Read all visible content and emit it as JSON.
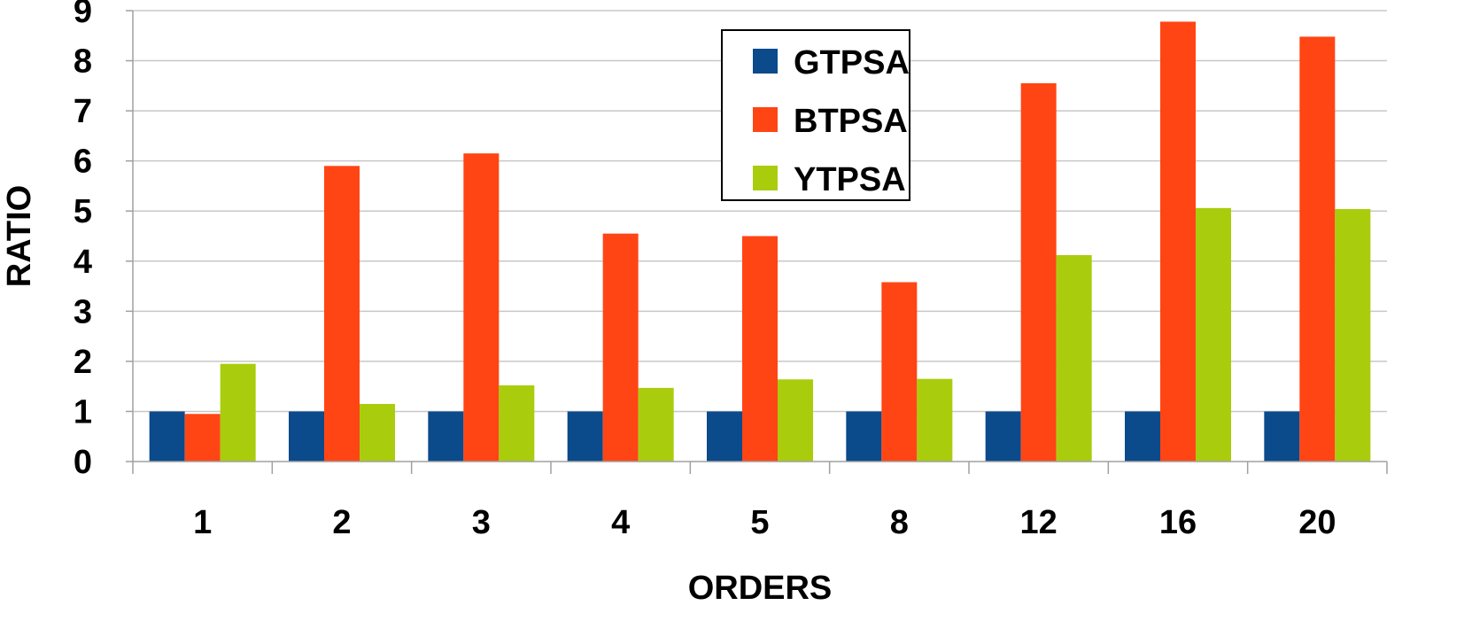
{
  "chart_data": {
    "type": "bar",
    "title": "",
    "xlabel": "ORDERS",
    "ylabel": "RATIO",
    "categories": [
      "1",
      "2",
      "3",
      "4",
      "5",
      "8",
      "12",
      "16",
      "20"
    ],
    "ylim": [
      0,
      9
    ],
    "yticks": [
      "0",
      "1",
      "2",
      "3",
      "4",
      "5",
      "6",
      "7",
      "8",
      "9"
    ],
    "grid": "horizontal",
    "legend_position": "top-center",
    "series": [
      {
        "name": "GTPSA",
        "color": "#0b4a8b",
        "values": [
          1,
          1,
          1,
          1,
          1,
          1,
          1,
          1,
          1
        ]
      },
      {
        "name": "BTPSA",
        "color": "#ff4514",
        "values": [
          0.95,
          5.9,
          6.15,
          4.55,
          4.5,
          3.58,
          7.55,
          8.78,
          8.48
        ]
      },
      {
        "name": "YTPSA",
        "color": "#a9cd0c",
        "values": [
          1.95,
          1.15,
          1.52,
          1.47,
          1.64,
          1.65,
          4.12,
          5.06,
          5.04
        ]
      }
    ]
  }
}
